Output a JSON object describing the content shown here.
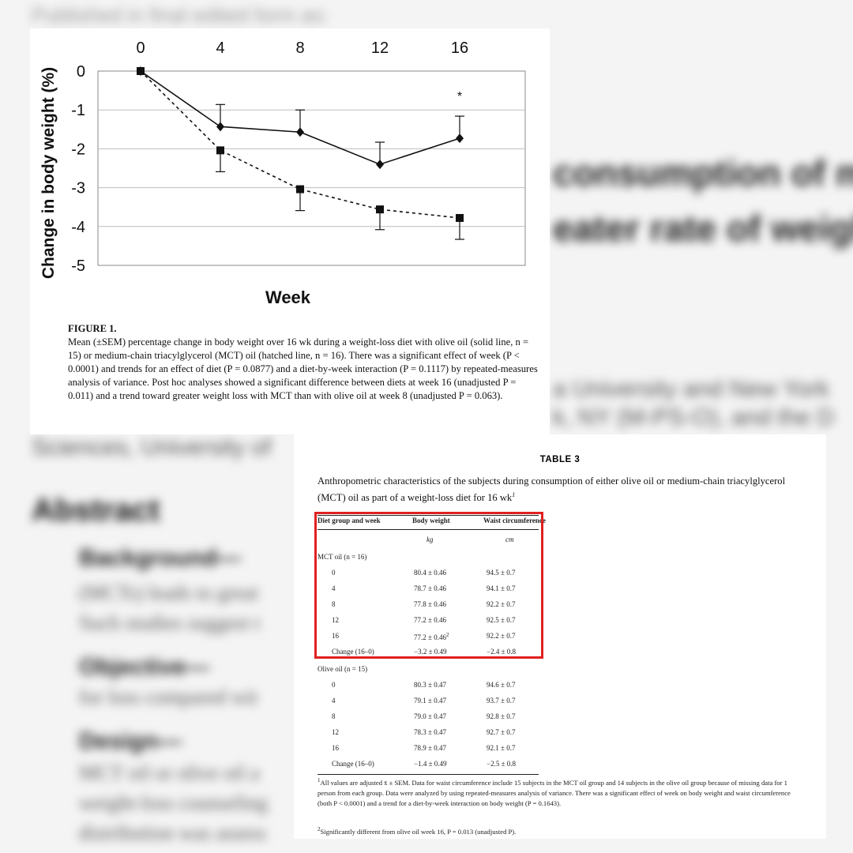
{
  "background": {
    "published": "Published in final edited form as:",
    "heading_line1": "consumption of m",
    "heading_line2": "eater rate of weigh",
    "affiliation_line1": "a University and New York",
    "affiliation_line2": "k, NY (M-PS-O), and the D",
    "affiliation_line3": "Sciences, University of",
    "abstract_heading": "Abstract",
    "background_label": "Background—",
    "background_text1": "(MCTs) leads to great",
    "background_text2": "Such studies suggest t",
    "objective_label": "Objective—",
    "objective_text": "for loss compared wit",
    "design_label": "Design—",
    "design_text1": "MCT oil or olive oil a",
    "design_text2": "weight-loss counseling",
    "design_text3": "distribution was assess"
  },
  "figure": {
    "title": "FIGURE 1.",
    "caption": "Mean (±SEM) percentage change in body weight over 16 wk during a weight-loss diet with olive oil (solid line, n = 15) or medium-chain triacylglycerol (MCT) oil (hatched line, n = 16). There was a significant effect of week (P < 0.0001) and trends for an effect of diet (P = 0.0877) and a diet-by-week interaction (P = 0.1117) by repeated-measures analysis of variance. Post hoc analyses showed a significant difference between diets at week 16 (unadjusted P = 0.011) and a trend toward greater weight loss with MCT than with olive oil at week 8 (unadjusted P = 0.063)."
  },
  "chart_data": {
    "type": "line",
    "x": [
      0,
      4,
      8,
      12,
      16
    ],
    "xlabel": "Week",
    "ylabel": "Change in body weight (%)",
    "ylim": [
      -5,
      0
    ],
    "yticks": [
      0,
      -1,
      -2,
      -3,
      -4,
      -5
    ],
    "grid": true,
    "annotation": "*",
    "annotation_week": 16,
    "series": [
      {
        "style": "solid",
        "marker": "diamond",
        "values": [
          0,
          -1.43,
          -1.57,
          -2.4,
          -1.73
        ],
        "err": [
          0,
          0.57,
          0.57,
          0.57,
          0.57
        ]
      },
      {
        "style": "dashed",
        "marker": "square",
        "values": [
          0,
          -2.04,
          -3.04,
          -3.56,
          -3.78
        ],
        "err": [
          0,
          0.55,
          0.55,
          0.52,
          0.55
        ]
      }
    ]
  },
  "table": {
    "number": "TABLE 3",
    "title": "Anthropometric characteristics of the subjects during consumption of either olive oil or medium-chain triacylglycerol (MCT) oil as part of a weight-loss diet for 16 wk",
    "title_sup": "1",
    "headers": [
      "Diet group and week",
      "Body weight",
      "Waist circumference"
    ],
    "units": [
      "",
      "kg",
      "cm"
    ],
    "groups": [
      {
        "label": "MCT oil (n = 16)",
        "rows": [
          [
            "0",
            "80.4 ± 0.46",
            "94.5 ± 0.7"
          ],
          [
            "4",
            "78.7 ± 0.46",
            "94.1 ± 0.7"
          ],
          [
            "8",
            "77.8 ± 0.46",
            "92.2 ± 0.7"
          ],
          [
            "12",
            "77.2 ± 0.46",
            "92.5 ± 0.7"
          ],
          [
            "16",
            "77.2 ± 0.46",
            "92.2 ± 0.7"
          ],
          [
            "Change (16–0)",
            "−3.2 ± 0.49",
            "−2.4 ± 0.8"
          ]
        ],
        "row16_sup": "2"
      },
      {
        "label": "Olive oil (n = 15)",
        "rows": [
          [
            "0",
            "80.3 ± 0.47",
            "94.6 ± 0.7"
          ],
          [
            "4",
            "79.1 ± 0.47",
            "93.7 ± 0.7"
          ],
          [
            "8",
            "79.0 ± 0.47",
            "92.8 ± 0.7"
          ],
          [
            "12",
            "78.3 ± 0.47",
            "92.7 ± 0.7"
          ],
          [
            "16",
            "78.9 ± 0.47",
            "92.1 ± 0.7"
          ],
          [
            "Change (16–0)",
            "−1.4 ± 0.49",
            "−2.5 ± 0.8"
          ]
        ]
      }
    ],
    "footnote1_sup": "1",
    "footnote1": "All values are adjusted x̄ ± SEM. Data for waist circumference include 15 subjects in the MCT oil group and 14 subjects in the olive oil group because of missing data for 1 person from each group. Data were analyzed by using repeated-measures analysis of variance. There was a significant effect of week on body weight and waist circumference (both P < 0.0001) and a trend for a diet-by-week interaction on body weight (P = 0.1643).",
    "footnote2_sup": "2",
    "footnote2": "Significantly different from olive oil week 16, P = 0.013 (unadjusted P)."
  }
}
